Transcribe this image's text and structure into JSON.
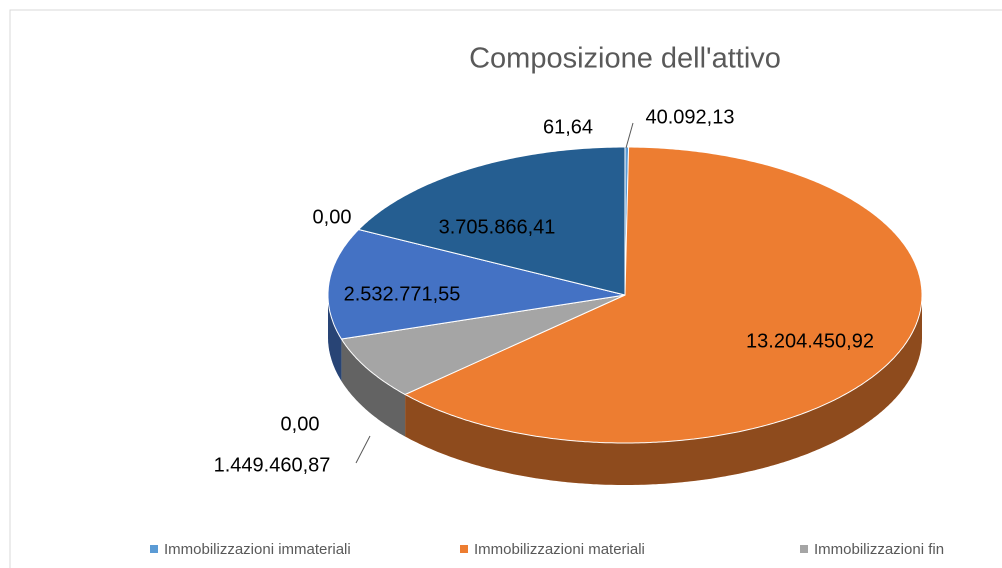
{
  "chart_data": {
    "type": "pie",
    "title": "Composizione dell'attivo",
    "categories": [
      "Immobilizzazioni immateriali",
      "Immobilizzazioni materiali",
      "Immobilizzazioni fin",
      null,
      null,
      null,
      null,
      null
    ],
    "values": [
      40092.13,
      13204450.92,
      1449460.87,
      0,
      2532771.55,
      0,
      3705866.41,
      61.64
    ],
    "value_labels": [
      "40.092,13",
      "13.204.450,92",
      "1.449.460,87",
      "0,00",
      "2.532.771,55",
      "0,00",
      "3.705.866,41",
      "61,64"
    ],
    "colors": [
      "#5b9bd5",
      "#ed7d31",
      "#a5a5a5",
      "#ffc000",
      "#4472c4",
      "#70ad47",
      "#255e91",
      "#9e480e"
    ],
    "legend": "bottom"
  }
}
